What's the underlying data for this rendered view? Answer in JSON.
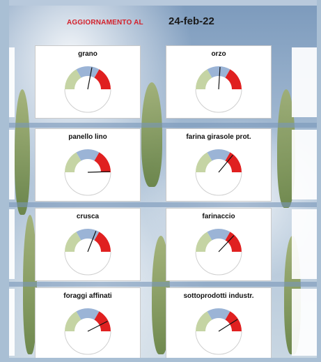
{
  "header": {
    "update_label": "AGGIORNAMENTO AL",
    "date": "24-feb-22"
  },
  "colors": {
    "green_zone": "#c5d4a4",
    "blue_zone": "#9bb4d6",
    "red_zone": "#e02020",
    "needle": "#111111",
    "update_label": "#d4202a"
  },
  "gauges": [
    {
      "id": "grano",
      "title": "grano",
      "level": 0.56
    },
    {
      "id": "orzo",
      "title": "orzo",
      "level": 0.52
    },
    {
      "id": "panello-lino",
      "title": "panello lino",
      "level": 0.99
    },
    {
      "id": "farina-girasole",
      "title": "farina girasole prot.",
      "level": 0.72
    },
    {
      "id": "crusca",
      "title": "crusca",
      "level": 0.62
    },
    {
      "id": "farinaccio",
      "title": "farinaccio",
      "level": 0.74
    },
    {
      "id": "foraggi-affinati",
      "title": "foraggi affinati",
      "level": 0.85
    },
    {
      "id": "sottoprodotti",
      "title": "sottoprodotti industr.",
      "level": 0.82
    }
  ]
}
